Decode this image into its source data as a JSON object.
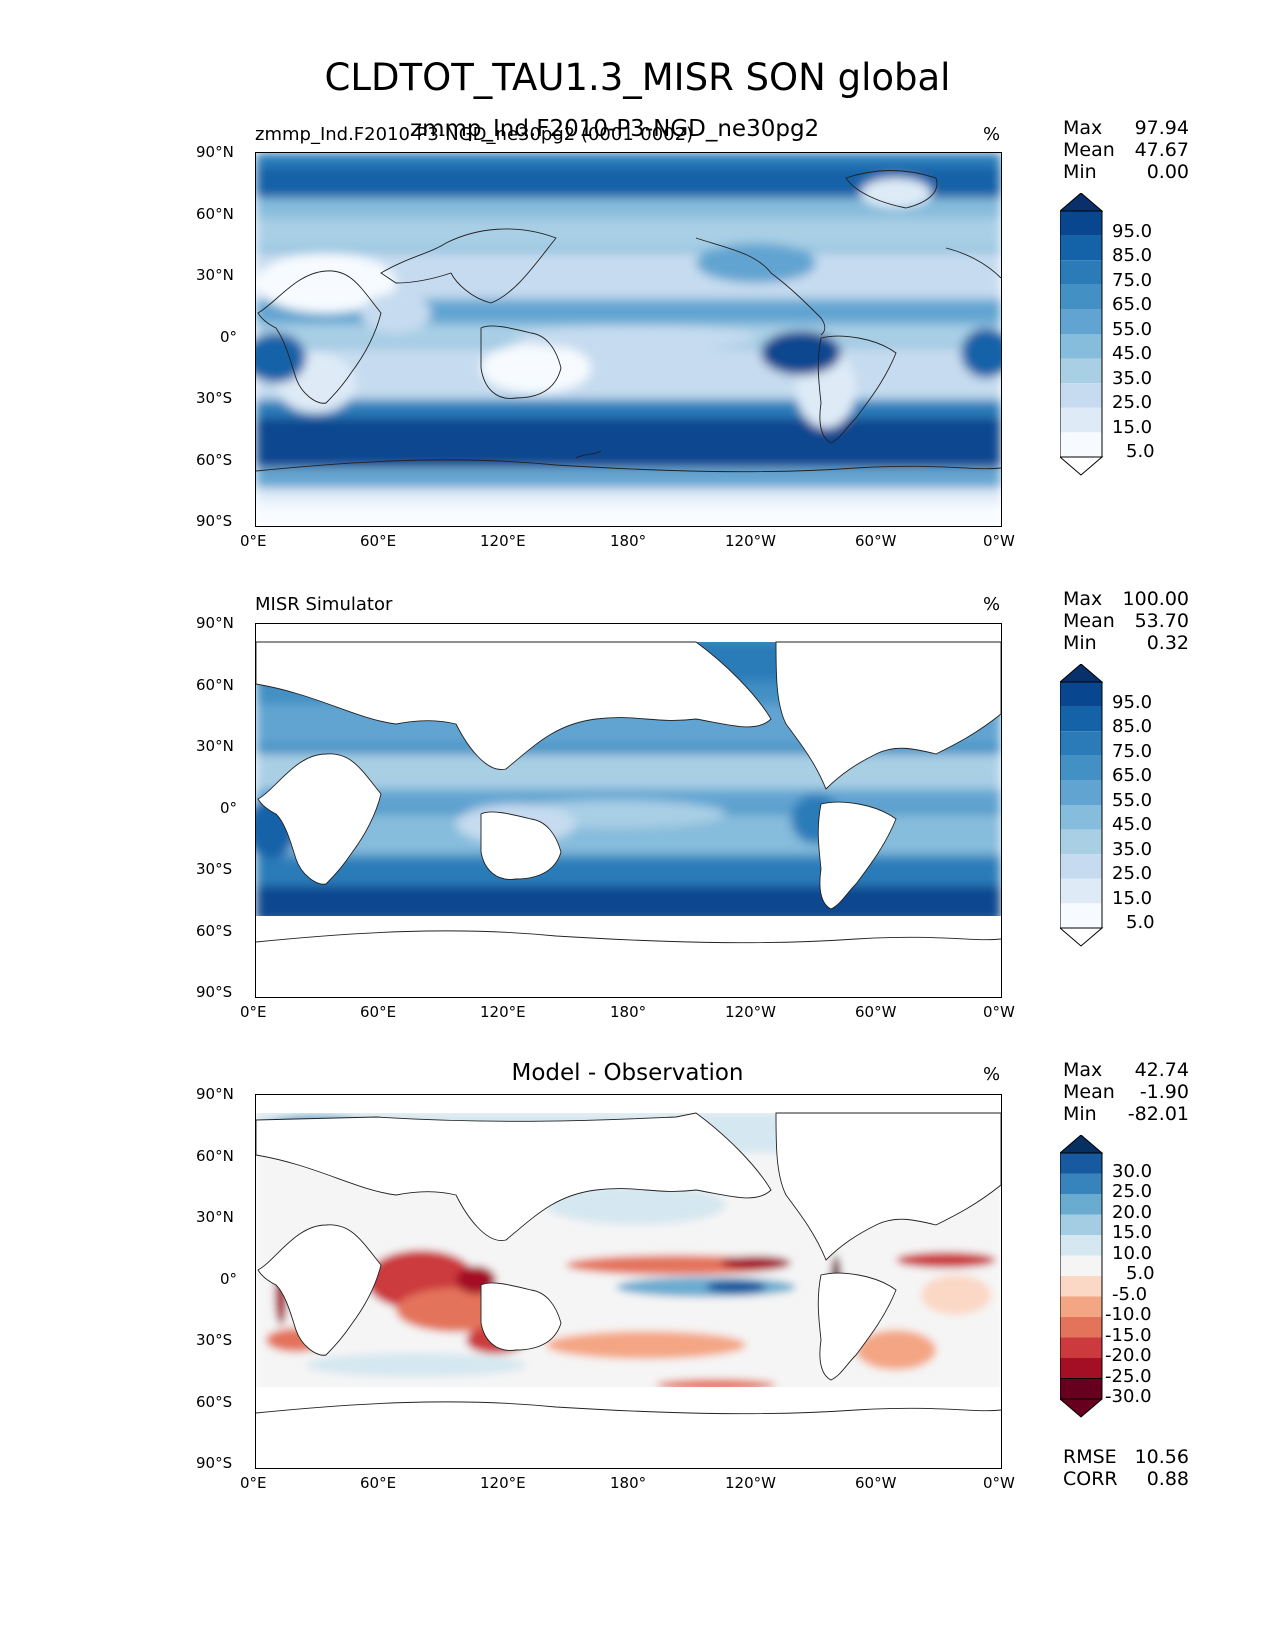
{
  "figure": {
    "title": "CLDTOT_TAU1.3_MISR SON global",
    "overlap_title": "zmmp_Ind.F2010-P3-NGD_ne30pg2"
  },
  "axes": {
    "lat_ticks": [
      "90°N",
      "60°N",
      "30°N",
      "0°",
      "30°S",
      "60°S",
      "90°S"
    ],
    "lon_ticks": [
      "0°E",
      "60°E",
      "120°E",
      "180°",
      "120°W",
      "60°W",
      "0°W"
    ]
  },
  "panels": [
    {
      "id": "model",
      "left_label": "zmmp_Ind.F2010-P3-NGD_ne30pg2 (0001-0002)",
      "center_label": "",
      "units": "%",
      "stats": [
        {
          "label": "Max",
          "value": "97.94"
        },
        {
          "label": "Mean",
          "value": "47.67"
        },
        {
          "label": "Min",
          "value": "0.00"
        }
      ],
      "colorbar_ticks": [
        "95.0",
        "85.0",
        "75.0",
        "65.0",
        "55.0",
        "45.0",
        "35.0",
        "25.0",
        "15.0",
        "5.0"
      ]
    },
    {
      "id": "obs",
      "left_label": "MISR Simulator",
      "center_label": "",
      "units": "%",
      "stats": [
        {
          "label": "Max",
          "value": "100.00"
        },
        {
          "label": "Mean",
          "value": "53.70"
        },
        {
          "label": "Min",
          "value": "0.32"
        }
      ],
      "colorbar_ticks": [
        "95.0",
        "85.0",
        "75.0",
        "65.0",
        "55.0",
        "45.0",
        "35.0",
        "25.0",
        "15.0",
        "5.0"
      ]
    },
    {
      "id": "diff",
      "left_label": "",
      "center_label": "Model - Observation",
      "units": "%",
      "stats": [
        {
          "label": "Max",
          "value": "42.74"
        },
        {
          "label": "Mean",
          "value": "-1.90"
        },
        {
          "label": "Min",
          "value": "-82.01"
        }
      ],
      "colorbar_ticks": [
        "30.0",
        "25.0",
        "20.0",
        "15.0",
        "10.0",
        "5.0",
        "-5.0",
        "-10.0",
        "-15.0",
        "-20.0",
        "-25.0",
        "-30.0"
      ],
      "metrics": [
        {
          "label": "RMSE",
          "value": "10.56"
        },
        {
          "label": "CORR",
          "value": "0.88"
        }
      ]
    }
  ],
  "colors": {
    "blues": [
      "#f7fbff",
      "#deebf7",
      "#c6dbef",
      "#a9cfe5",
      "#86bcdc",
      "#62a4d1",
      "#4390c4",
      "#2b7bb9",
      "#1462a8",
      "#08478f",
      "#08306b"
    ],
    "rdbu": [
      "#67001f",
      "#a50f25",
      "#cc3a3e",
      "#e4735c",
      "#f4a684",
      "#fbd7c5",
      "#f5f5f5",
      "#d5e7f0",
      "#a4cde3",
      "#6aabd0",
      "#3784bc",
      "#185a9f",
      "#053061"
    ]
  }
}
